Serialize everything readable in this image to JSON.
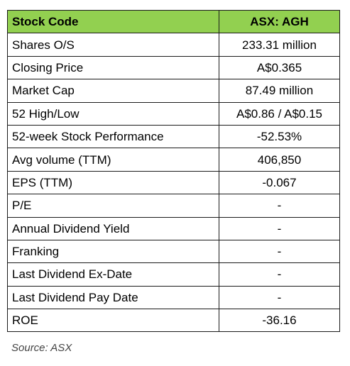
{
  "table": {
    "header": {
      "label": "Stock Code",
      "value": "ASX: AGH"
    },
    "rows": [
      {
        "label": "Shares O/S",
        "value": "233.31 million"
      },
      {
        "label": "Closing Price",
        "value": "A$0.365"
      },
      {
        "label": "Market Cap",
        "value": "87.49 million"
      },
      {
        "label": "52 High/Low",
        "value": "A$0.86 / A$0.15"
      },
      {
        "label": "52-week Stock Performance",
        "value": "-52.53%"
      },
      {
        "label": "Avg volume (TTM)",
        "value": "406,850"
      },
      {
        "label": "EPS (TTM)",
        "value": "-0.067"
      },
      {
        "label": "P/E",
        "value": "-"
      },
      {
        "label": "Annual Dividend Yield",
        "value": "-"
      },
      {
        "label": "Franking",
        "value": "-"
      },
      {
        "label": "Last Dividend Ex-Date",
        "value": "-"
      },
      {
        "label": "Last Dividend Pay Date",
        "value": "-"
      },
      {
        "label": "ROE",
        "value": "-36.16"
      }
    ],
    "header_color": "#92d050"
  },
  "source": "Source: ASX"
}
